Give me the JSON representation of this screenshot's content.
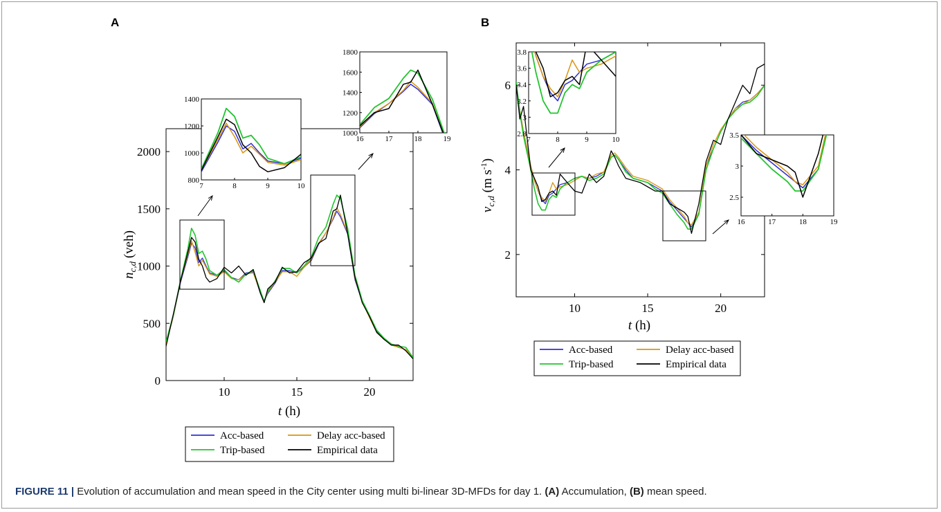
{
  "caption": {
    "label": "FIGURE 11 |",
    "text": "Evolution of accumulation and mean speed in the City center using multi bi-linear 3D-MFDs for day 1. ",
    "a_tag": "(A)",
    "a_text": " Accumulation, ",
    "b_tag": "(B)",
    "b_text": " mean speed."
  },
  "colors": {
    "acc": "#2f2fd6",
    "delay": "#d9940f",
    "trip": "#22c42e",
    "emp": "#000000"
  },
  "legend": [
    "Acc-based",
    "Delay acc-based",
    "Trip-based",
    "Empirical data"
  ],
  "chart_data": [
    {
      "panel": "A",
      "type": "line",
      "xlabel": "t (h)",
      "ylabel": "n_{c,d} (veh)",
      "xlim": [
        6,
        23
      ],
      "ylim": [
        0,
        2200
      ],
      "xticks": [
        10,
        15,
        20
      ],
      "yticks": [
        0,
        500,
        1000,
        1500,
        2000
      ],
      "x": [
        6,
        6.5,
        7,
        7.5,
        7.75,
        8,
        8.25,
        8.5,
        8.75,
        9,
        9.5,
        10,
        10.5,
        11,
        11.5,
        12,
        12.5,
        12.75,
        13,
        13.5,
        14,
        14.5,
        15,
        15.5,
        16,
        16.5,
        17,
        17.5,
        17.75,
        18,
        18.5,
        19,
        19.5,
        20,
        20.5,
        21,
        21.5,
        22,
        22.5,
        23
      ],
      "series": [
        {
          "name": "Acc-based",
          "values": [
            320,
            560,
            860,
            1080,
            1200,
            1160,
            1030,
            1070,
            1000,
            940,
            920,
            960,
            900,
            880,
            940,
            950,
            760,
            700,
            760,
            850,
            960,
            960,
            940,
            990,
            1050,
            1190,
            1290,
            1410,
            1480,
            1430,
            1280,
            880,
            690,
            560,
            430,
            360,
            320,
            290,
            270,
            200
          ]
        },
        {
          "name": "Delay acc-based",
          "values": [
            320,
            560,
            870,
            1100,
            1220,
            1120,
            1000,
            1050,
            990,
            930,
            910,
            950,
            890,
            880,
            930,
            940,
            770,
            690,
            770,
            860,
            950,
            950,
            910,
            990,
            1060,
            1200,
            1290,
            1420,
            1510,
            1450,
            1290,
            890,
            690,
            550,
            420,
            360,
            310,
            290,
            270,
            200
          ]
        },
        {
          "name": "Trip-based",
          "values": [
            340,
            570,
            880,
            1150,
            1330,
            1270,
            1110,
            1130,
            1060,
            960,
            920,
            970,
            900,
            860,
            930,
            960,
            780,
            690,
            780,
            870,
            980,
            980,
            940,
            1000,
            1080,
            1250,
            1340,
            1540,
            1620,
            1590,
            1330,
            920,
            700,
            570,
            440,
            370,
            320,
            300,
            290,
            200
          ]
        },
        {
          "name": "Empirical data",
          "values": [
            300,
            580,
            870,
            1120,
            1250,
            1210,
            1060,
            1000,
            900,
            860,
            890,
            990,
            940,
            1000,
            920,
            970,
            760,
            680,
            800,
            860,
            990,
            940,
            950,
            1030,
            1070,
            1200,
            1240,
            1480,
            1500,
            1620,
            1280,
            900,
            680,
            560,
            420,
            360,
            310,
            310,
            260,
            190
          ]
        }
      ],
      "insets": [
        {
          "xlim": [
            7,
            10
          ],
          "ylim": [
            800,
            1400
          ],
          "xticks": [
            7,
            8,
            9,
            10
          ],
          "yticks": [
            800,
            1000,
            1200,
            1400
          ]
        },
        {
          "xlim": [
            16,
            19
          ],
          "ylim": [
            1000,
            1800
          ],
          "xticks": [
            16,
            17,
            18,
            19
          ],
          "yticks": [
            1000,
            1200,
            1400,
            1600,
            1800
          ]
        }
      ]
    },
    {
      "panel": "B",
      "type": "line",
      "xlabel": "t (h)",
      "ylabel": "v_{c,d} (m s^-1)",
      "xlim": [
        6,
        23
      ],
      "ylim": [
        1,
        7
      ],
      "xticks": [
        10,
        15,
        20
      ],
      "yticks": [
        2,
        4,
        6
      ],
      "x": [
        6,
        6.25,
        6.5,
        7,
        7.25,
        7.5,
        7.75,
        8,
        8.25,
        8.5,
        8.75,
        9,
        9.5,
        10,
        10.5,
        11,
        11.5,
        12,
        12.5,
        12.75,
        13,
        13.5,
        14,
        14.5,
        15,
        15.5,
        16,
        16.5,
        17,
        17.5,
        17.75,
        18,
        18.5,
        19,
        19.5,
        20,
        20.5,
        21,
        21.5,
        22,
        22.5,
        23
      ],
      "series": [
        {
          "name": "Acc-based",
          "values": [
            6.0,
            5.4,
            4.9,
            4.1,
            3.75,
            3.5,
            3.3,
            3.2,
            3.4,
            3.45,
            3.55,
            3.65,
            3.7,
            3.8,
            3.85,
            3.8,
            3.85,
            3.95,
            4.3,
            4.35,
            4.25,
            4.0,
            3.8,
            3.75,
            3.7,
            3.6,
            3.5,
            3.25,
            3.05,
            2.85,
            2.75,
            2.65,
            2.95,
            4.1,
            4.5,
            4.9,
            5.2,
            5.45,
            5.6,
            5.65,
            5.8,
            6.0
          ]
        },
        {
          "name": "Delay acc-based",
          "values": [
            6.0,
            5.4,
            4.9,
            4.1,
            3.75,
            3.5,
            3.35,
            3.25,
            3.45,
            3.7,
            3.55,
            3.6,
            3.65,
            3.75,
            3.85,
            3.8,
            3.9,
            3.95,
            4.35,
            4.4,
            4.3,
            4.05,
            3.85,
            3.8,
            3.75,
            3.65,
            3.55,
            3.3,
            3.1,
            2.9,
            2.75,
            2.7,
            3.0,
            4.1,
            4.6,
            4.95,
            5.2,
            5.45,
            5.55,
            5.65,
            5.8,
            6.0
          ]
        },
        {
          "name": "Trip-based",
          "values": [
            6.1,
            5.35,
            4.8,
            4.0,
            3.55,
            3.2,
            3.05,
            3.05,
            3.3,
            3.4,
            3.35,
            3.55,
            3.7,
            3.8,
            3.85,
            3.75,
            3.8,
            3.9,
            4.3,
            4.35,
            4.25,
            3.95,
            3.8,
            3.75,
            3.7,
            3.55,
            3.45,
            3.2,
            2.95,
            2.75,
            2.6,
            2.6,
            2.95,
            4.0,
            4.5,
            4.9,
            5.2,
            5.4,
            5.55,
            5.6,
            5.75,
            6.0
          ]
        },
        {
          "name": "Empirical data",
          "values": [
            6.0,
            5.2,
            5.5,
            4.0,
            3.8,
            3.6,
            3.25,
            3.3,
            3.45,
            3.5,
            3.4,
            3.9,
            3.7,
            3.5,
            3.45,
            3.9,
            3.7,
            3.85,
            4.45,
            4.3,
            4.1,
            3.8,
            3.75,
            3.7,
            3.6,
            3.5,
            3.5,
            3.2,
            3.1,
            3.0,
            2.9,
            2.5,
            3.2,
            4.2,
            4.7,
            4.6,
            5.2,
            5.6,
            6.0,
            5.8,
            6.4,
            6.5
          ]
        }
      ],
      "insets": [
        {
          "xlim": [
            7,
            10
          ],
          "ylim": [
            2.8,
            3.8
          ],
          "xticks": [
            7,
            8,
            9,
            10
          ],
          "yticks": [
            2.8,
            3,
            3.2,
            3.4,
            3.6,
            3.8
          ]
        },
        {
          "xlim": [
            16,
            19
          ],
          "ylim": [
            2.2,
            3.5
          ],
          "xticks": [
            16,
            17,
            18,
            19
          ],
          "yticks": [
            2.5,
            3,
            3.5
          ]
        }
      ]
    }
  ]
}
